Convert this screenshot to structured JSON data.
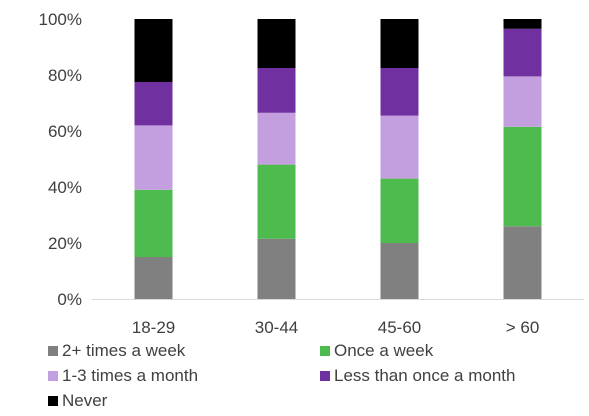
{
  "chart_data": {
    "type": "bar",
    "stacked": true,
    "categories": [
      "18-29",
      "30-44",
      "45-60",
      "> 60"
    ],
    "series": [
      {
        "name": "2+ times a week",
        "color": "#808080",
        "values": [
          15,
          21.5,
          20,
          26
        ]
      },
      {
        "name": "Once a week",
        "color": "#4dbb4d",
        "values": [
          24,
          26.5,
          23,
          35.5
        ]
      },
      {
        "name": "1-3 times a month",
        "color": "#c49fe0",
        "values": [
          23,
          18.5,
          22.5,
          18
        ]
      },
      {
        "name": "Less than once a month",
        "color": "#7030a0",
        "values": [
          15.5,
          16,
          17,
          17
        ]
      },
      {
        "name": "Never",
        "color": "#000000",
        "values": [
          22.5,
          17.5,
          17.5,
          3.5
        ]
      }
    ],
    "ylim": [
      0,
      100
    ],
    "ytick_labels": [
      "0%",
      "20%",
      "40%",
      "60%",
      "80%",
      "100%"
    ],
    "grid": false,
    "legend_position": "bottom"
  }
}
